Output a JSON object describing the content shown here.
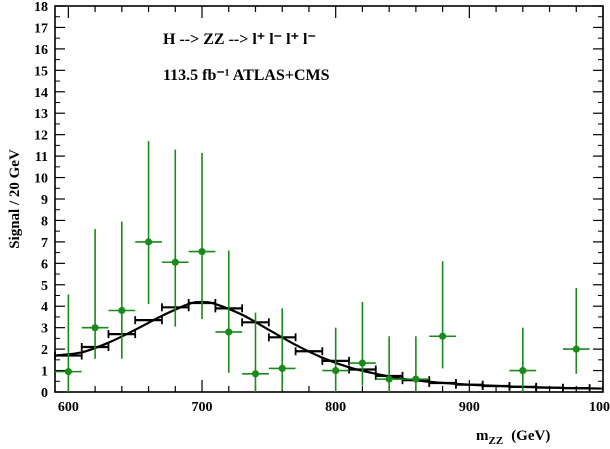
{
  "chart_data": {
    "type": "scatter",
    "title": "",
    "annotations": {
      "process": "H --> ZZ --> l⁺ l⁻ l⁺ l⁻",
      "lumi": "113.5 fb⁻¹  ATLAS+CMS"
    },
    "xlabel": "m_ZZ  (GeV)",
    "xlabel_main": "m",
    "xlabel_sub": "ZZ",
    "xlabel_unit": "(GeV)",
    "ylabel": "Signal / 20 GeV",
    "xlim": [
      590,
      1000
    ],
    "ylim": [
      0,
      18
    ],
    "x_ticks": [
      600,
      700,
      800,
      900,
      1000
    ],
    "y_ticks": [
      0,
      1,
      2,
      3,
      4,
      5,
      6,
      7,
      8,
      9,
      10,
      11,
      12,
      13,
      14,
      15,
      16,
      17,
      18
    ],
    "grid": false,
    "colors": {
      "data": "#1a8a1a",
      "expectation": "#000000",
      "axis": "#000000"
    },
    "series": [
      {
        "kind": "data_points",
        "x": [
          600,
          620,
          640,
          660,
          680,
          700,
          720,
          740,
          760,
          800,
          820,
          840,
          860,
          880,
          940,
          980
        ],
        "y": [
          0.95,
          3.0,
          3.8,
          7.0,
          6.05,
          6.55,
          2.8,
          0.85,
          1.1,
          1.0,
          1.35,
          0.6,
          0.6,
          2.6,
          1.0,
          2.0
        ],
        "y_low": [
          0.0,
          1.55,
          1.55,
          4.1,
          3.05,
          3.4,
          0.9,
          0.0,
          0.1,
          0.0,
          0.3,
          0.0,
          0.0,
          1.1,
          0.0,
          0.85
        ],
        "y_high": [
          4.55,
          7.6,
          7.95,
          11.7,
          11.3,
          11.15,
          6.6,
          3.7,
          3.9,
          3.0,
          4.2,
          2.6,
          2.6,
          6.1,
          3.0,
          4.85
        ],
        "x_halfwidth": 10
      },
      {
        "kind": "expected_histogram",
        "bin_edges": [
          590,
          610,
          630,
          650,
          670,
          690,
          710,
          730,
          750,
          770,
          790,
          810,
          830,
          850,
          870,
          890,
          910,
          930,
          950,
          970,
          990
        ],
        "values": [
          1.7,
          2.1,
          2.7,
          3.35,
          3.95,
          4.15,
          3.9,
          3.25,
          2.55,
          1.9,
          1.45,
          1.05,
          0.75,
          0.55,
          0.42,
          0.34,
          0.28,
          0.24,
          0.2,
          0.18
        ]
      },
      {
        "kind": "expected_curve",
        "x": [
          590,
          610,
          630,
          650,
          670,
          690,
          700,
          710,
          730,
          750,
          770,
          790,
          810,
          830,
          850,
          870,
          890,
          910,
          930,
          950,
          970,
          990,
          1000
        ],
        "y": [
          1.7,
          1.85,
          2.3,
          2.9,
          3.55,
          4.1,
          4.2,
          4.1,
          3.6,
          2.9,
          2.2,
          1.6,
          1.15,
          0.85,
          0.62,
          0.48,
          0.38,
          0.31,
          0.26,
          0.22,
          0.19,
          0.17,
          0.16
        ]
      }
    ]
  }
}
